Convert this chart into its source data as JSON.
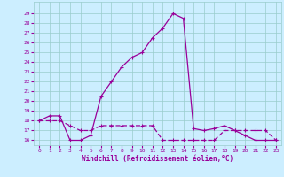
{
  "xlabel": "Windchill (Refroidissement éolien,°C)",
  "xlim": [
    -0.5,
    23.5
  ],
  "ylim": [
    15.5,
    30.2
  ],
  "yticks": [
    16,
    17,
    18,
    19,
    20,
    21,
    22,
    23,
    24,
    25,
    26,
    27,
    28,
    29
  ],
  "xticks": [
    0,
    1,
    2,
    3,
    4,
    5,
    6,
    7,
    8,
    9,
    10,
    11,
    12,
    13,
    14,
    15,
    16,
    17,
    18,
    19,
    20,
    21,
    22,
    23
  ],
  "background_color": "#cceeff",
  "grid_color": "#99cccc",
  "line_color": "#990099",
  "line1_x": [
    0,
    1,
    2,
    3,
    4,
    5,
    6,
    7,
    8,
    9,
    10,
    11,
    12,
    13,
    14,
    15,
    16,
    17,
    18,
    19,
    20,
    21,
    22,
    23
  ],
  "line1_y": [
    18,
    18.5,
    18.5,
    16,
    16,
    16.5,
    20.5,
    22,
    23.5,
    24.5,
    25,
    26.5,
    27.5,
    29,
    28.5,
    17.2,
    17,
    17.2,
    17.5,
    17,
    16.5,
    16,
    16,
    16
  ],
  "line2_x": [
    0,
    1,
    2,
    3,
    4,
    5,
    6,
    7,
    8,
    9,
    10,
    11,
    12,
    13,
    14,
    15,
    16,
    17,
    18,
    19,
    20,
    21,
    22,
    23
  ],
  "line2_y": [
    18,
    18,
    18,
    17.5,
    17,
    17,
    17.5,
    17.5,
    17.5,
    17.5,
    17.5,
    17.5,
    16,
    16,
    16,
    16,
    16,
    16,
    17,
    17,
    17,
    17,
    17,
    16
  ]
}
